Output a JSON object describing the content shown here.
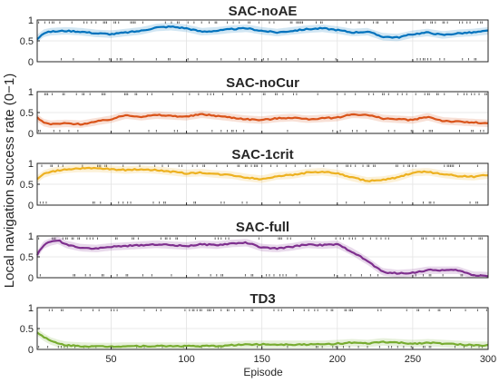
{
  "chart_data": {
    "type": "line",
    "ylabel": "Local navigation success rate (0−1)",
    "xlabel": "Episode",
    "xlim": [
      1,
      300
    ],
    "xticks": [
      "50",
      "100",
      "150",
      "200",
      "250",
      "300"
    ],
    "yticks": [
      "0",
      "0.5",
      "1"
    ],
    "ylim": [
      0,
      1
    ],
    "grid": true,
    "panels": [
      {
        "title": "SAC-noAE",
        "color": "#0072BD",
        "x": [
          1,
          5,
          10,
          20,
          30,
          40,
          50,
          60,
          70,
          80,
          90,
          100,
          110,
          120,
          130,
          140,
          150,
          160,
          170,
          180,
          190,
          200,
          210,
          220,
          230,
          240,
          250,
          260,
          270,
          280,
          290,
          300
        ],
        "y": [
          0.55,
          0.68,
          0.72,
          0.74,
          0.72,
          0.68,
          0.66,
          0.7,
          0.74,
          0.82,
          0.84,
          0.8,
          0.72,
          0.74,
          0.78,
          0.8,
          0.74,
          0.7,
          0.74,
          0.78,
          0.8,
          0.76,
          0.7,
          0.72,
          0.6,
          0.58,
          0.66,
          0.7,
          0.64,
          0.68,
          0.7,
          0.74
        ]
      },
      {
        "title": "SAC-noCur",
        "color": "#D95319",
        "x": [
          1,
          5,
          10,
          20,
          30,
          40,
          50,
          60,
          70,
          80,
          90,
          100,
          110,
          120,
          130,
          140,
          150,
          160,
          170,
          180,
          190,
          200,
          210,
          220,
          230,
          240,
          250,
          260,
          270,
          280,
          290,
          300
        ],
        "y": [
          0.38,
          0.26,
          0.22,
          0.24,
          0.22,
          0.28,
          0.34,
          0.44,
          0.4,
          0.44,
          0.42,
          0.4,
          0.46,
          0.42,
          0.38,
          0.34,
          0.32,
          0.36,
          0.38,
          0.34,
          0.36,
          0.38,
          0.46,
          0.44,
          0.36,
          0.34,
          0.32,
          0.4,
          0.3,
          0.28,
          0.26,
          0.24
        ]
      },
      {
        "title": "SAC-1crit",
        "color": "#EDB120",
        "x": [
          1,
          5,
          10,
          20,
          30,
          40,
          50,
          60,
          70,
          80,
          90,
          100,
          110,
          120,
          130,
          140,
          150,
          160,
          170,
          180,
          190,
          200,
          210,
          220,
          230,
          240,
          250,
          260,
          270,
          280,
          290,
          300
        ],
        "y": [
          0.62,
          0.74,
          0.8,
          0.86,
          0.88,
          0.88,
          0.86,
          0.84,
          0.86,
          0.84,
          0.8,
          0.76,
          0.78,
          0.74,
          0.72,
          0.66,
          0.62,
          0.7,
          0.72,
          0.78,
          0.8,
          0.76,
          0.66,
          0.58,
          0.6,
          0.66,
          0.78,
          0.8,
          0.74,
          0.7,
          0.68,
          0.72
        ]
      },
      {
        "title": "SAC-full",
        "color": "#7E2F8E",
        "x": [
          1,
          5,
          10,
          15,
          20,
          30,
          40,
          50,
          60,
          70,
          80,
          90,
          100,
          110,
          120,
          130,
          140,
          150,
          160,
          170,
          180,
          190,
          200,
          210,
          220,
          230,
          240,
          250,
          260,
          270,
          280,
          290,
          300
        ],
        "y": [
          0.55,
          0.78,
          0.86,
          0.9,
          0.8,
          0.72,
          0.7,
          0.74,
          0.76,
          0.78,
          0.8,
          0.78,
          0.76,
          0.8,
          0.78,
          0.82,
          0.84,
          0.72,
          0.7,
          0.74,
          0.8,
          0.78,
          0.8,
          0.62,
          0.4,
          0.14,
          0.1,
          0.12,
          0.18,
          0.18,
          0.18,
          0.06,
          0.05
        ]
      },
      {
        "title": "TD3",
        "color": "#77AC30",
        "x": [
          1,
          5,
          10,
          15,
          20,
          30,
          40,
          50,
          60,
          80,
          100,
          120,
          130,
          140,
          150,
          160,
          170,
          180,
          190,
          200,
          210,
          220,
          230,
          240,
          250,
          260,
          270,
          280,
          290,
          300
        ],
        "y": [
          0.42,
          0.3,
          0.2,
          0.14,
          0.1,
          0.08,
          0.07,
          0.07,
          0.08,
          0.08,
          0.08,
          0.08,
          0.1,
          0.12,
          0.12,
          0.12,
          0.12,
          0.12,
          0.12,
          0.14,
          0.16,
          0.14,
          0.18,
          0.16,
          0.14,
          0.16,
          0.14,
          0.12,
          0.1,
          0.1
        ]
      }
    ]
  }
}
